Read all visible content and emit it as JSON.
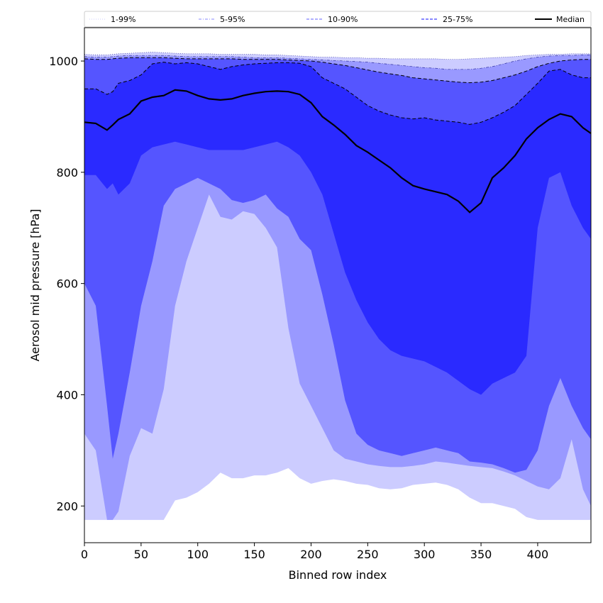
{
  "chart_data": {
    "type": "area",
    "title": "",
    "xlabel": "Binned row index",
    "ylabel": "Aerosol mid pressure [hPa]",
    "xlim": [
      0,
      447
    ],
    "ylim": [
      134,
      1060
    ],
    "x_ticks": [
      0,
      50,
      100,
      150,
      200,
      250,
      300,
      350,
      400
    ],
    "y_ticks": [
      200,
      400,
      600,
      800,
      1000
    ],
    "legend_position": "top",
    "legend": [
      {
        "label": "1-99%",
        "color": "#d6d6ff",
        "style": "dotted"
      },
      {
        "label": "5-95%",
        "color": "#a0a0ff",
        "style": "dashdot"
      },
      {
        "label": "10-90%",
        "color": "#8080ff",
        "style": "dashed"
      },
      {
        "label": "25-75%",
        "color": "#4040ff",
        "style": "dashed"
      },
      {
        "label": "Median",
        "color": "#000000",
        "style": "solid"
      }
    ],
    "x": [
      0,
      10,
      20,
      25,
      30,
      40,
      50,
      60,
      70,
      80,
      90,
      100,
      110,
      120,
      130,
      140,
      150,
      160,
      170,
      180,
      190,
      200,
      210,
      220,
      230,
      240,
      250,
      260,
      270,
      280,
      290,
      300,
      310,
      320,
      330,
      340,
      350,
      360,
      370,
      380,
      390,
      400,
      410,
      420,
      430,
      440,
      447
    ],
    "bands": [
      {
        "name": "1-99%",
        "color": "#ccccff",
        "lower": [
          175,
          175,
          175,
          175,
          175,
          175,
          175,
          175,
          175,
          210,
          215,
          225,
          240,
          260,
          250,
          250,
          255,
          255,
          260,
          268,
          250,
          240,
          245,
          248,
          245,
          240,
          238,
          232,
          230,
          232,
          238,
          240,
          242,
          238,
          230,
          215,
          205,
          205,
          200,
          195,
          180,
          175,
          175,
          175,
          175,
          175,
          175
        ],
        "upper": [
          1012,
          1011,
          1011,
          1012,
          1013,
          1014,
          1015,
          1016,
          1015,
          1014,
          1013,
          1013,
          1013,
          1012,
          1012,
          1012,
          1012,
          1011,
          1011,
          1010,
          1009,
          1008,
          1007,
          1007,
          1006,
          1006,
          1005,
          1005,
          1004,
          1004,
          1004,
          1004,
          1004,
          1003,
          1003,
          1004,
          1005,
          1006,
          1007,
          1008,
          1010,
          1011,
          1012,
          1012,
          1013,
          1013,
          1013
        ]
      },
      {
        "name": "5-95%",
        "color": "#9999ff",
        "lower": [
          330,
          300,
          175,
          175,
          190,
          290,
          340,
          330,
          410,
          560,
          640,
          700,
          760,
          720,
          715,
          730,
          725,
          700,
          665,
          520,
          420,
          380,
          340,
          300,
          285,
          280,
          275,
          272,
          270,
          270,
          272,
          275,
          280,
          278,
          275,
          272,
          270,
          268,
          262,
          255,
          245,
          235,
          230,
          250,
          320,
          230,
          200
        ],
        "upper": [
          1008,
          1007,
          1007,
          1008,
          1009,
          1010,
          1010,
          1010,
          1010,
          1009,
          1008,
          1008,
          1008,
          1008,
          1008,
          1007,
          1006,
          1006,
          1006,
          1005,
          1004,
          1003,
          1002,
          1001,
          1000,
          999,
          998,
          996,
          994,
          992,
          990,
          988,
          987,
          985,
          985,
          985,
          987,
          990,
          995,
          1000,
          1004,
          1007,
          1009,
          1010,
          1010,
          1011,
          1011
        ]
      },
      {
        "name": "10-90%",
        "color": "#5555ff",
        "lower": [
          600,
          560,
          380,
          285,
          330,
          440,
          560,
          640,
          740,
          770,
          780,
          790,
          780,
          770,
          750,
          745,
          750,
          760,
          735,
          720,
          680,
          660,
          580,
          490,
          390,
          330,
          310,
          300,
          295,
          290,
          295,
          300,
          305,
          300,
          295,
          280,
          278,
          275,
          268,
          260,
          265,
          300,
          380,
          430,
          380,
          340,
          320
        ],
        "upper": [
          1004,
          1003,
          1003,
          1004,
          1005,
          1006,
          1006,
          1006,
          1006,
          1005,
          1004,
          1004,
          1004,
          1004,
          1004,
          1003,
          1003,
          1003,
          1003,
          1002,
          1001,
          1000,
          998,
          995,
          992,
          988,
          984,
          980,
          977,
          974,
          970,
          968,
          966,
          964,
          962,
          961,
          962,
          965,
          970,
          975,
          982,
          990,
          996,
          1000,
          1002,
          1003,
          1003
        ]
      },
      {
        "name": "25-75%",
        "color": "#2a2aff",
        "lower": [
          795,
          795,
          770,
          780,
          760,
          780,
          830,
          845,
          850,
          855,
          850,
          845,
          840,
          840,
          840,
          840,
          845,
          850,
          855,
          845,
          830,
          800,
          760,
          690,
          620,
          570,
          530,
          500,
          480,
          470,
          465,
          460,
          450,
          440,
          425,
          410,
          400,
          420,
          430,
          440,
          470,
          700,
          790,
          800,
          740,
          700,
          680
        ],
        "upper": [
          950,
          950,
          940,
          945,
          960,
          965,
          975,
          995,
          998,
          995,
          997,
          995,
          990,
          985,
          990,
          993,
          995,
          996,
          997,
          997,
          996,
          990,
          970,
          960,
          950,
          935,
          920,
          910,
          903,
          898,
          896,
          898,
          894,
          892,
          890,
          886,
          890,
          898,
          908,
          920,
          940,
          960,
          982,
          985,
          975,
          970,
          970
        ]
      }
    ],
    "series": [
      {
        "name": "Median",
        "color": "#000000",
        "values": [
          890,
          888,
          876,
          885,
          895,
          905,
          928,
          935,
          938,
          948,
          946,
          938,
          932,
          930,
          932,
          938,
          942,
          945,
          946,
          945,
          940,
          925,
          900,
          885,
          868,
          848,
          836,
          822,
          808,
          790,
          776,
          770,
          765,
          760,
          748,
          728,
          745,
          790,
          808,
          830,
          860,
          880,
          895,
          905,
          900,
          880,
          870
        ]
      }
    ]
  }
}
